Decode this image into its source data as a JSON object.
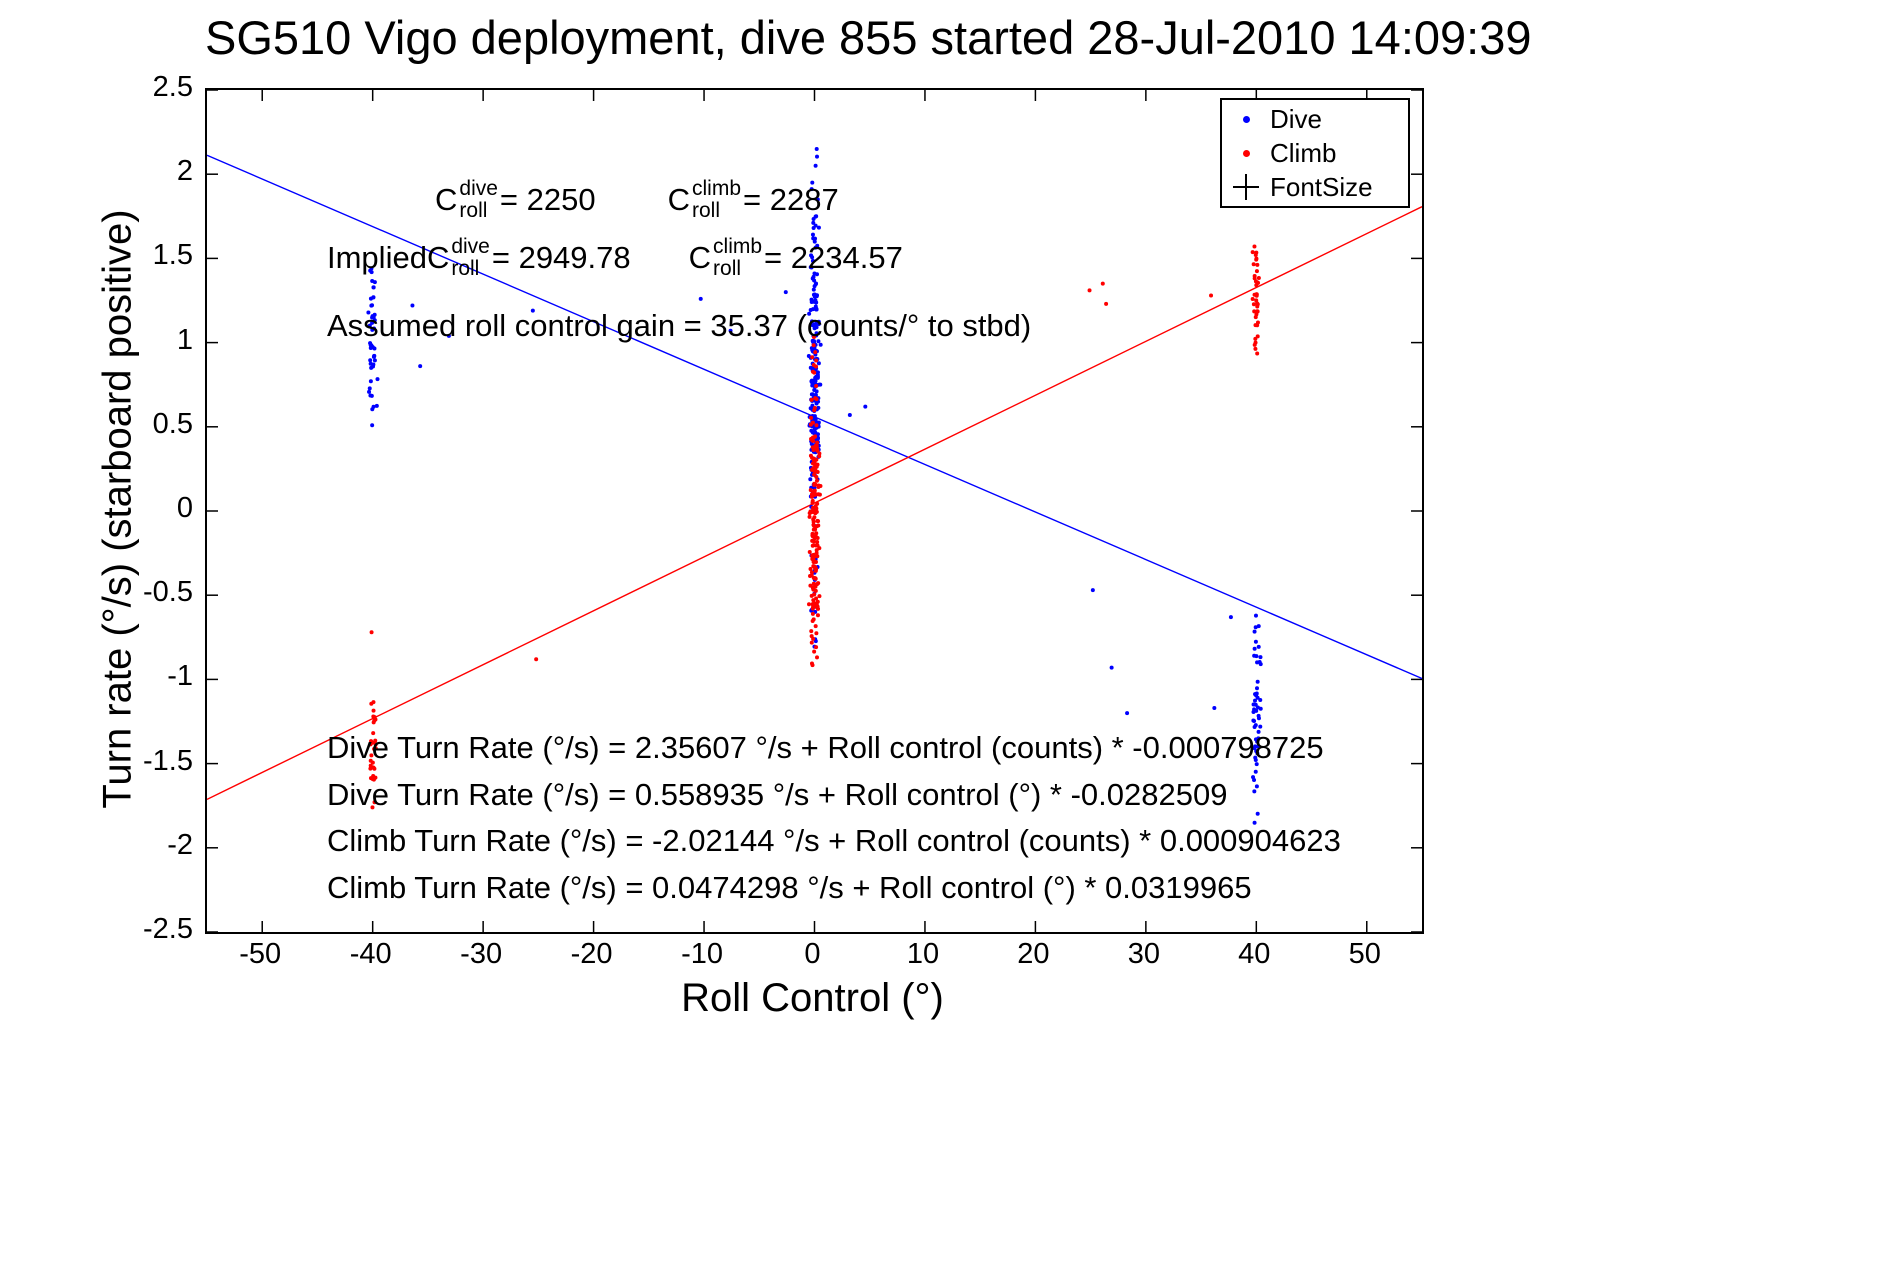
{
  "chart_data": {
    "type": "scatter",
    "title": "SG510 Vigo deployment, dive 855 started 28-Jul-2010 14:09:39",
    "xlabel": "Roll Control (°)",
    "ylabel": "Turn rate (°/s) (starboard positive)",
    "xlim": [
      -55,
      55
    ],
    "ylim": [
      -2.5,
      2.5
    ],
    "xticks": [
      -50,
      -40,
      -30,
      -20,
      -10,
      0,
      10,
      20,
      30,
      40,
      50
    ],
    "yticks": [
      -2.5,
      -2,
      -1.5,
      -1,
      -0.5,
      0,
      0.5,
      1,
      1.5,
      2,
      2.5
    ],
    "grid": false,
    "marker_size_px": 2,
    "seed": 42,
    "legend": {
      "position": "top-right",
      "items": [
        {
          "label": "Dive",
          "marker": "dot",
          "color": "#0000ff"
        },
        {
          "label": "Climb",
          "marker": "dot",
          "color": "#ff0000"
        },
        {
          "label": "FontSize",
          "marker": "plus",
          "color": "#000000"
        }
      ]
    },
    "series": [
      {
        "name": "Dive",
        "color": "#0000ff",
        "fit_line": {
          "color": "#0000ff",
          "intercept": 0.558935,
          "slope": -0.0282509
        },
        "clusters": [
          {
            "cx": -40,
            "sx": 0.18,
            "cy": 1.05,
            "sy": 0.3,
            "n": 48,
            "ymin": 0.1,
            "ymax": 1.45
          },
          {
            "cx": 0,
            "sx": 0.2,
            "cy": 0.95,
            "sy": 0.4,
            "n": 150,
            "ymin": 0.35,
            "ymax": 2.2
          },
          {
            "cx": 0,
            "sx": 0.2,
            "cy": 0.45,
            "sy": 0.35,
            "n": 60,
            "ymin": -0.3,
            "ymax": 1.0
          },
          {
            "cx": 0,
            "sx": 0.18,
            "cy": -0.55,
            "sy": 0.3,
            "n": 16,
            "ymin": -1.05,
            "ymax": -0.1
          },
          {
            "cx": 40,
            "sx": 0.18,
            "cy": -1.2,
            "sy": 0.32,
            "n": 55,
            "ymin": -1.88,
            "ymax": -0.58
          }
        ],
        "points": [
          [
            -36.4,
            1.22
          ],
          [
            -35.7,
            0.86
          ],
          [
            -33.1,
            1.04
          ],
          [
            -25.5,
            1.19
          ],
          [
            -10.3,
            1.26
          ],
          [
            -7.6,
            1.07
          ],
          [
            25.2,
            -0.47
          ],
          [
            26.9,
            -0.93
          ],
          [
            28.3,
            -1.2
          ],
          [
            36.2,
            -1.17
          ],
          [
            37.7,
            -0.63
          ],
          [
            3.2,
            0.57
          ],
          [
            4.6,
            0.62
          ],
          [
            -2.6,
            1.3
          ],
          [
            0.2,
            2.15
          ],
          [
            0.1,
            2.05
          ],
          [
            -0.2,
            1.95
          ],
          [
            0.3,
            1.85
          ],
          [
            0.15,
            1.75
          ]
        ]
      },
      {
        "name": "Climb",
        "color": "#ff0000",
        "fit_line": {
          "color": "#ff0000",
          "intercept": 0.0474298,
          "slope": 0.0319965
        },
        "clusters": [
          {
            "cx": -40,
            "sx": 0.15,
            "cy": -1.4,
            "sy": 0.26,
            "n": 32,
            "ymin": -1.92,
            "ymax": -0.98
          },
          {
            "cx": 0,
            "sx": 0.2,
            "cy": 0.1,
            "sy": 0.3,
            "n": 120,
            "ymin": -0.6,
            "ymax": 0.68
          },
          {
            "cx": 0,
            "sx": 0.2,
            "cy": -0.45,
            "sy": 0.25,
            "n": 70,
            "ymin": -0.95,
            "ymax": 0.0
          },
          {
            "cx": 0,
            "sx": 0.15,
            "cy": 0.88,
            "sy": 0.1,
            "n": 10,
            "ymin": 0.7,
            "ymax": 1.05
          },
          {
            "cx": 40,
            "sx": 0.15,
            "cy": 1.25,
            "sy": 0.2,
            "n": 42,
            "ymin": 0.88,
            "ymax": 1.66
          }
        ],
        "points": [
          [
            -40.1,
            -0.72
          ],
          [
            -25.2,
            -0.88
          ],
          [
            26.1,
            1.35
          ],
          [
            26.4,
            1.23
          ],
          [
            35.9,
            1.28
          ],
          [
            24.9,
            1.31
          ]
        ]
      }
    ],
    "annotations": {
      "row1_term1": {
        "base": "C",
        "sup": "dive",
        "sub": "roll",
        "eq": " = 2250"
      },
      "row1_term2": {
        "base": "C",
        "sup": "climb",
        "sub": "roll",
        "eq": " = 2287"
      },
      "row2_prefix": "Implied ",
      "row2_term1": {
        "base": "C",
        "sup": "dive",
        "sub": "roll",
        "eq": " = 2949.78"
      },
      "row2_term2": {
        "base": "C",
        "sup": "climb",
        "sub": "roll",
        "eq": " = 2234.57"
      },
      "gain_line": "Assumed roll control gain = 35.37 (counts/° to stbd)",
      "eq_dive_counts": "Dive Turn Rate (°/s) = 2.35607 °/s + Roll control (counts) * -0.000798725",
      "eq_dive_deg": "Dive Turn Rate (°/s) = 0.558935 °/s + Roll control (°) * -0.0282509",
      "eq_climb_counts": "Climb Turn Rate (°/s) = -2.02144 °/s + Roll control (counts) * 0.000904623",
      "eq_climb_deg": "Climb Turn Rate (°/s) = 0.0474298 °/s + Roll control (°) * 0.0319965"
    },
    "stats": {
      "c_roll_dive": 2250,
      "c_roll_climb": 2287,
      "implied_c_roll_dive": 2949.78,
      "implied_c_roll_climb": 2234.57,
      "roll_control_gain_counts_per_deg": 35.37
    }
  }
}
